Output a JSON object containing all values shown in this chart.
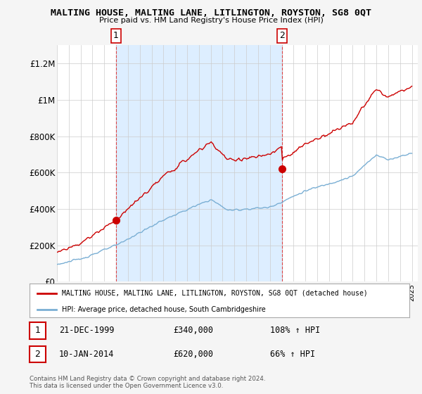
{
  "title": "MALTING HOUSE, MALTING LANE, LITLINGTON, ROYSTON, SG8 0QT",
  "subtitle": "Price paid vs. HM Land Registry's House Price Index (HPI)",
  "ylabel_ticks": [
    "£0",
    "£200K",
    "£400K",
    "£600K",
    "£800K",
    "£1M",
    "£1.2M"
  ],
  "ytick_values": [
    0,
    200000,
    400000,
    600000,
    800000,
    1000000,
    1200000
  ],
  "ylim": [
    0,
    1300000
  ],
  "xlim_start": 1995.0,
  "xlim_end": 2025.5,
  "marker1_x": 1999.97,
  "marker1_y": 340000,
  "marker2_x": 2014.03,
  "marker2_y": 620000,
  "vline1_x": 1999.97,
  "vline2_x": 2014.03,
  "sale_color": "#cc0000",
  "hpi_color": "#7aafd4",
  "shade_color": "#ddeeff",
  "legend_sale_label": "MALTING HOUSE, MALTING LANE, LITLINGTON, ROYSTON, SG8 0QT (detached house)",
  "legend_hpi_label": "HPI: Average price, detached house, South Cambridgeshire",
  "table_rows": [
    [
      "1",
      "21-DEC-1999",
      "£340,000",
      "108% ↑ HPI"
    ],
    [
      "2",
      "10-JAN-2014",
      "£620,000",
      "66% ↑ HPI"
    ]
  ],
  "footnote": "Contains HM Land Registry data © Crown copyright and database right 2024.\nThis data is licensed under the Open Government Licence v3.0.",
  "bg_color": "#f5f5f5",
  "plot_bg_color": "#ffffff",
  "grid_color": "#cccccc"
}
